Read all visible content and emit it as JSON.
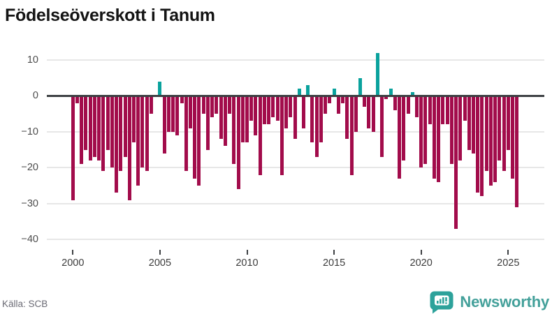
{
  "title": "Födelseöverskott i Tanum",
  "source": "Källa: SCB",
  "brand": {
    "name": "Newsworthy",
    "icon": "bar-chart-speech-bubble-icon",
    "text_color": "#43a09a",
    "icon_color": "#2da29b"
  },
  "colors": {
    "positive_bar": "#0aa29d",
    "negative_bar": "#a20c4b",
    "zero_line": "#3d4043",
    "gridline": "#e7e7e7",
    "axis_text": "#4d4d4d",
    "title_text": "#141414"
  },
  "chart_data": {
    "type": "bar",
    "title": "Födelseöverskott i Tanum",
    "xlabel": "",
    "ylabel": "",
    "frequency": "quarterly",
    "x_start": "2000Q1",
    "x_end": "2025Q3",
    "ylim": [
      -42,
      14
    ],
    "grid": "horizontal",
    "legend": "none",
    "y_ticks": [
      10,
      0,
      -10,
      -20,
      -30,
      -40
    ],
    "y_tick_labels": [
      "10",
      "0",
      "−10",
      "−20",
      "−30",
      "−40"
    ],
    "x_ticks": [
      {
        "label": "2000",
        "index": 0
      },
      {
        "label": "2005",
        "index": 20
      },
      {
        "label": "2010",
        "index": 40
      },
      {
        "label": "2015",
        "index": 60
      },
      {
        "label": "2020",
        "index": 80
      },
      {
        "label": "2025",
        "index": 100
      }
    ],
    "values": [
      -29,
      -2,
      -19,
      -15,
      -18,
      -17,
      -18,
      -21,
      -15,
      -20,
      -27,
      -21,
      -17,
      -29,
      -13,
      -25,
      -20,
      -21,
      -5,
      0,
      4,
      -16,
      -10,
      -10,
      -11,
      -2,
      -21,
      -9,
      -23,
      -25,
      -5,
      -15,
      -6,
      -5,
      -12,
      -14,
      -5,
      -19,
      -26,
      -13,
      -13,
      -7,
      -11,
      -22,
      -8,
      -8,
      -6,
      -7,
      -22,
      -9,
      -6,
      -12,
      2,
      -9,
      3,
      -13,
      -17,
      -13,
      -5,
      -2,
      2,
      -5,
      -2,
      -12,
      -22,
      -10,
      5,
      -3,
      -9,
      -10,
      12,
      -17,
      -1,
      2,
      -4,
      -23,
      -18,
      -5,
      1,
      -6,
      -20,
      -19,
      -8,
      -23,
      -24,
      -8,
      -8,
      -19,
      -37,
      -18,
      -7,
      -15,
      -16,
      -27,
      -28,
      -21,
      -25,
      -24,
      -18,
      -21,
      -15,
      -23,
      -31
    ]
  }
}
